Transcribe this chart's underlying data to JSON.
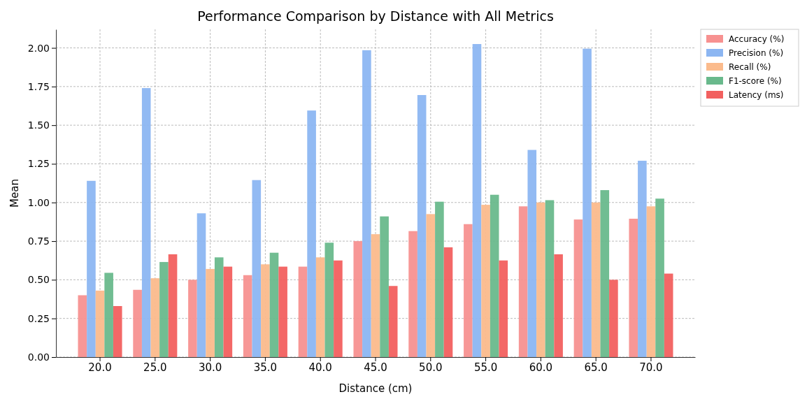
{
  "chart_data": {
    "type": "bar",
    "title": "Performance Comparison by Distance with All Metrics",
    "xlabel": "Distance (cm)",
    "ylabel": "Mean",
    "categories": [
      "20.0",
      "25.0",
      "30.0",
      "35.0",
      "40.0",
      "45.0",
      "50.0",
      "55.0",
      "60.0",
      "65.0",
      "70.0"
    ],
    "series": [
      {
        "name": "Accuracy (%)",
        "color": "#f79190",
        "values": [
          0.4,
          0.435,
          0.5,
          0.53,
          0.585,
          0.75,
          0.815,
          0.86,
          0.975,
          0.89,
          0.895
        ]
      },
      {
        "name": "Precision (%)",
        "color": "#8cb6f2",
        "values": [
          1.14,
          1.74,
          0.93,
          1.145,
          1.595,
          1.985,
          1.695,
          2.025,
          1.34,
          1.995,
          1.27
        ]
      },
      {
        "name": "Recall (%)",
        "color": "#fbbb8c",
        "values": [
          0.43,
          0.51,
          0.57,
          0.6,
          0.645,
          0.795,
          0.925,
          0.985,
          1.0,
          1.0,
          0.975
        ]
      },
      {
        "name": "F1-score (%)",
        "color": "#69b98c",
        "values": [
          0.545,
          0.615,
          0.645,
          0.675,
          0.74,
          0.91,
          1.005,
          1.05,
          1.015,
          1.08,
          1.025
        ]
      },
      {
        "name": "Latency (ms)",
        "color": "#f2605f",
        "values": [
          0.33,
          0.665,
          0.585,
          0.585,
          0.625,
          0.46,
          0.71,
          0.625,
          0.665,
          0.5,
          0.54
        ]
      }
    ],
    "ylim": [
      0,
      2.12
    ],
    "yticks": [
      {
        "value": 0,
        "label": "0.00"
      },
      {
        "value": 0.25,
        "label": "0.25"
      },
      {
        "value": 0.5,
        "label": "0.50"
      },
      {
        "value": 0.75,
        "label": "0.75"
      },
      {
        "value": 1,
        "label": "1.00"
      },
      {
        "value": 1.25,
        "label": "1.25"
      },
      {
        "value": 1.5,
        "label": "1.50"
      },
      {
        "value": 1.75,
        "label": "1.75"
      },
      {
        "value": 2,
        "label": "2.00"
      }
    ],
    "grid": true,
    "legend": "top right"
  }
}
